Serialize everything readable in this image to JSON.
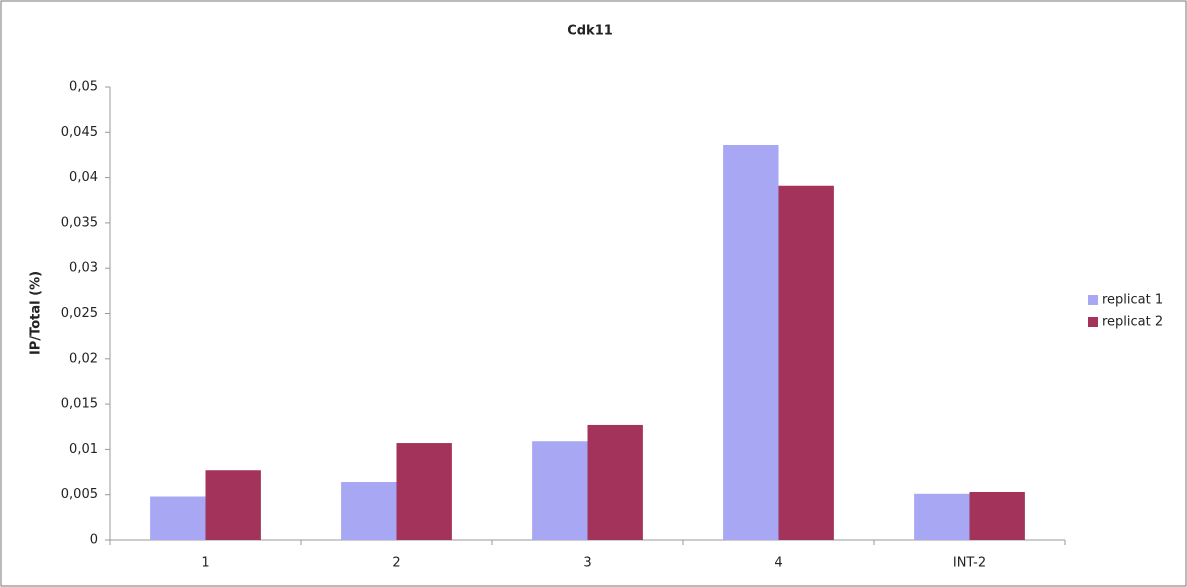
{
  "chart_data": {
    "type": "bar",
    "title": "Cdk11",
    "y_label": "IP/Total (%)",
    "categories": [
      "1",
      "2",
      "3",
      "4",
      "INT-2"
    ],
    "series": [
      {
        "name": "replicat 1",
        "color": "#a7a7f4",
        "values": [
          0.0048,
          0.0064,
          0.0109,
          0.0436,
          0.0051
        ]
      },
      {
        "name": "replicat 2",
        "color": "#a3335a",
        "values": [
          0.0077,
          0.0107,
          0.0127,
          0.0391,
          0.0053
        ]
      }
    ],
    "ylim": [
      0,
      0.05
    ],
    "yticks": [
      0,
      {
        "value": 0.005,
        "label": "0,005"
      },
      {
        "value": 0.01,
        "label": "0,01"
      },
      {
        "value": 0.015,
        "label": "0,015"
      },
      {
        "value": 0.02,
        "label": "0,02"
      },
      {
        "value": 0.025,
        "label": "0,025"
      },
      {
        "value": 0.03,
        "label": "0,03"
      },
      {
        "value": 0.035,
        "label": "0,035"
      },
      {
        "value": 0.04,
        "label": "0,04"
      },
      {
        "value": 0.045,
        "label": "0,045"
      },
      {
        "value": 0.05,
        "label": "0,05"
      }
    ],
    "legend": "right"
  }
}
